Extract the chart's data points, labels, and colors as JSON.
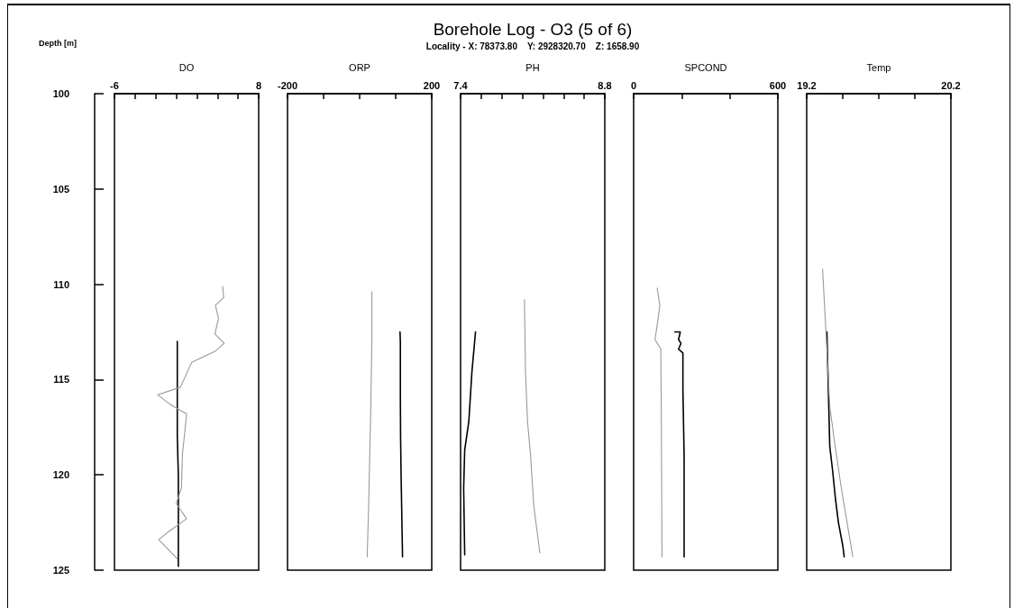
{
  "chart_data": [
    {
      "type": "line",
      "ylabel": "Depth [m]",
      "xlabel": "DO",
      "xlim": [
        -6,
        8
      ],
      "xticks": [
        -6,
        {
          "value": -4,
          "label": null
        },
        {
          "value": -2,
          "label": null
        },
        {
          "value": 0,
          "label": null
        },
        {
          "value": 2,
          "label": null
        },
        {
          "value": 4,
          "label": null
        },
        {
          "value": 6,
          "label": null
        },
        8
      ],
      "ylim": [
        125,
        100
      ],
      "yticks": [
        100,
        105,
        110,
        115,
        120,
        125
      ],
      "series": [
        {
          "color": "#000000",
          "x": [
            0.1,
            0.1,
            0.1,
            0.2,
            0.2,
            0.2
          ],
          "values": [
            113,
            115.5,
            118,
            120,
            122.5,
            124.8
          ]
        },
        {
          "color": "#999999",
          "x": [
            4.5,
            4.6,
            3.8,
            4.1,
            3.75,
            4.65,
            3.8,
            1.5,
            0.4,
            -1.8,
            -0.6,
            1.0,
            0.8,
            0.6,
            0.5,
            0,
            1.0,
            -0.8,
            -1.7,
            0.1
          ],
          "values": [
            110.1,
            110.7,
            111.1,
            111.8,
            112.6,
            113.1,
            113.5,
            114.1,
            115.4,
            115.8,
            116.3,
            116.8,
            117.9,
            118.9,
            120.7,
            121.5,
            122.3,
            123,
            123.4,
            124.4
          ]
        }
      ]
    },
    {
      "type": "line",
      "xlabel": "ORP",
      "xlim": [
        -200,
        200
      ],
      "xticks": [
        -200,
        {
          "value": -100,
          "label": null
        },
        {
          "value": 0,
          "label": null
        },
        {
          "value": 100,
          "label": null
        },
        200
      ],
      "ylim": [
        125,
        100
      ],
      "tick_labels": "x",
      "series": [
        {
          "color": "#000000",
          "x": [
            112,
            113,
            113,
            113.6,
            115,
            119
          ],
          "values": [
            112.5,
            113,
            116,
            118,
            120,
            124.3
          ]
        },
        {
          "color": "#999999",
          "x": [
            34,
            34,
            31,
            25,
            21
          ],
          "values": [
            110.4,
            113,
            116.4,
            121.6,
            124.3
          ]
        }
      ]
    },
    {
      "type": "line",
      "title": "Borehole Log - O3 (5 of 6)",
      "subtitle": "Locality - X: 78373.80    Y: 2928320.70    Z: 1658.90",
      "xlabel": "PH",
      "xlim": [
        7.4,
        8.8
      ],
      "xticks": [
        7.4,
        {
          "value": 7.6,
          "label": null
        },
        {
          "value": 7.8,
          "label": null
        },
        {
          "value": 8,
          "label": null
        },
        {
          "value": 8.2,
          "label": null
        },
        {
          "value": 8.4,
          "label": null
        },
        {
          "value": 8.6,
          "label": null
        },
        8.8
      ],
      "ylim": [
        125,
        100
      ],
      "tick_labels": "x",
      "series": [
        {
          "color": "#000000",
          "x": [
            7.545,
            7.51,
            7.48,
            7.44,
            7.43,
            7.44
          ],
          "values": [
            112.5,
            114.6,
            117.2,
            118.7,
            120.7,
            124.2
          ]
        },
        {
          "color": "#999999",
          "x": [
            8.02,
            8.03,
            8.05,
            8.08,
            8.11,
            8.17
          ],
          "values": [
            110.8,
            114.6,
            117.2,
            119,
            121.6,
            124.1
          ]
        }
      ]
    },
    {
      "type": "line",
      "xlabel": "SPCOND",
      "xlim": [
        0,
        600
      ],
      "xticks": [
        0,
        {
          "value": 200,
          "label": null
        },
        {
          "value": 400,
          "label": null
        },
        600
      ],
      "ylim": [
        125,
        100
      ],
      "tick_labels": "x",
      "series": [
        {
          "color": "#000000",
          "x": [
            171,
            194,
            187,
            197,
            187,
            205,
            205,
            210,
            210
          ],
          "values": [
            112.5,
            112.5,
            112.9,
            113.1,
            113.4,
            113.6,
            115.5,
            119,
            124.3
          ]
        },
        {
          "color": "#999999",
          "x": [
            98,
            109,
            102,
            89,
            113,
            115,
            118
          ],
          "values": [
            110.2,
            111.1,
            111.8,
            112.9,
            113.4,
            116.4,
            124.3
          ]
        }
      ]
    },
    {
      "type": "line",
      "xlabel": "Temp",
      "xlim": [
        19.2,
        20.2
      ],
      "xticks": [
        19.2,
        {
          "value": 19.45,
          "label": null
        },
        {
          "value": 19.7,
          "label": null
        },
        {
          "value": 19.95,
          "label": null
        },
        20.2
      ],
      "ylim": [
        125,
        100
      ],
      "tick_labels": "x",
      "series": [
        {
          "color": "#000000",
          "x": [
            19.34,
            19.35,
            19.36,
            19.38,
            19.4,
            19.42,
            19.45,
            19.46
          ],
          "values": [
            112.5,
            115.5,
            118.5,
            119.8,
            121.3,
            122.5,
            123.7,
            124.3
          ]
        },
        {
          "color": "#999999",
          "x": [
            19.31,
            19.34,
            19.36,
            19.39,
            19.44,
            19.52
          ],
          "values": [
            109.2,
            113.4,
            116.4,
            118.1,
            120.7,
            124.3
          ]
        }
      ]
    }
  ]
}
